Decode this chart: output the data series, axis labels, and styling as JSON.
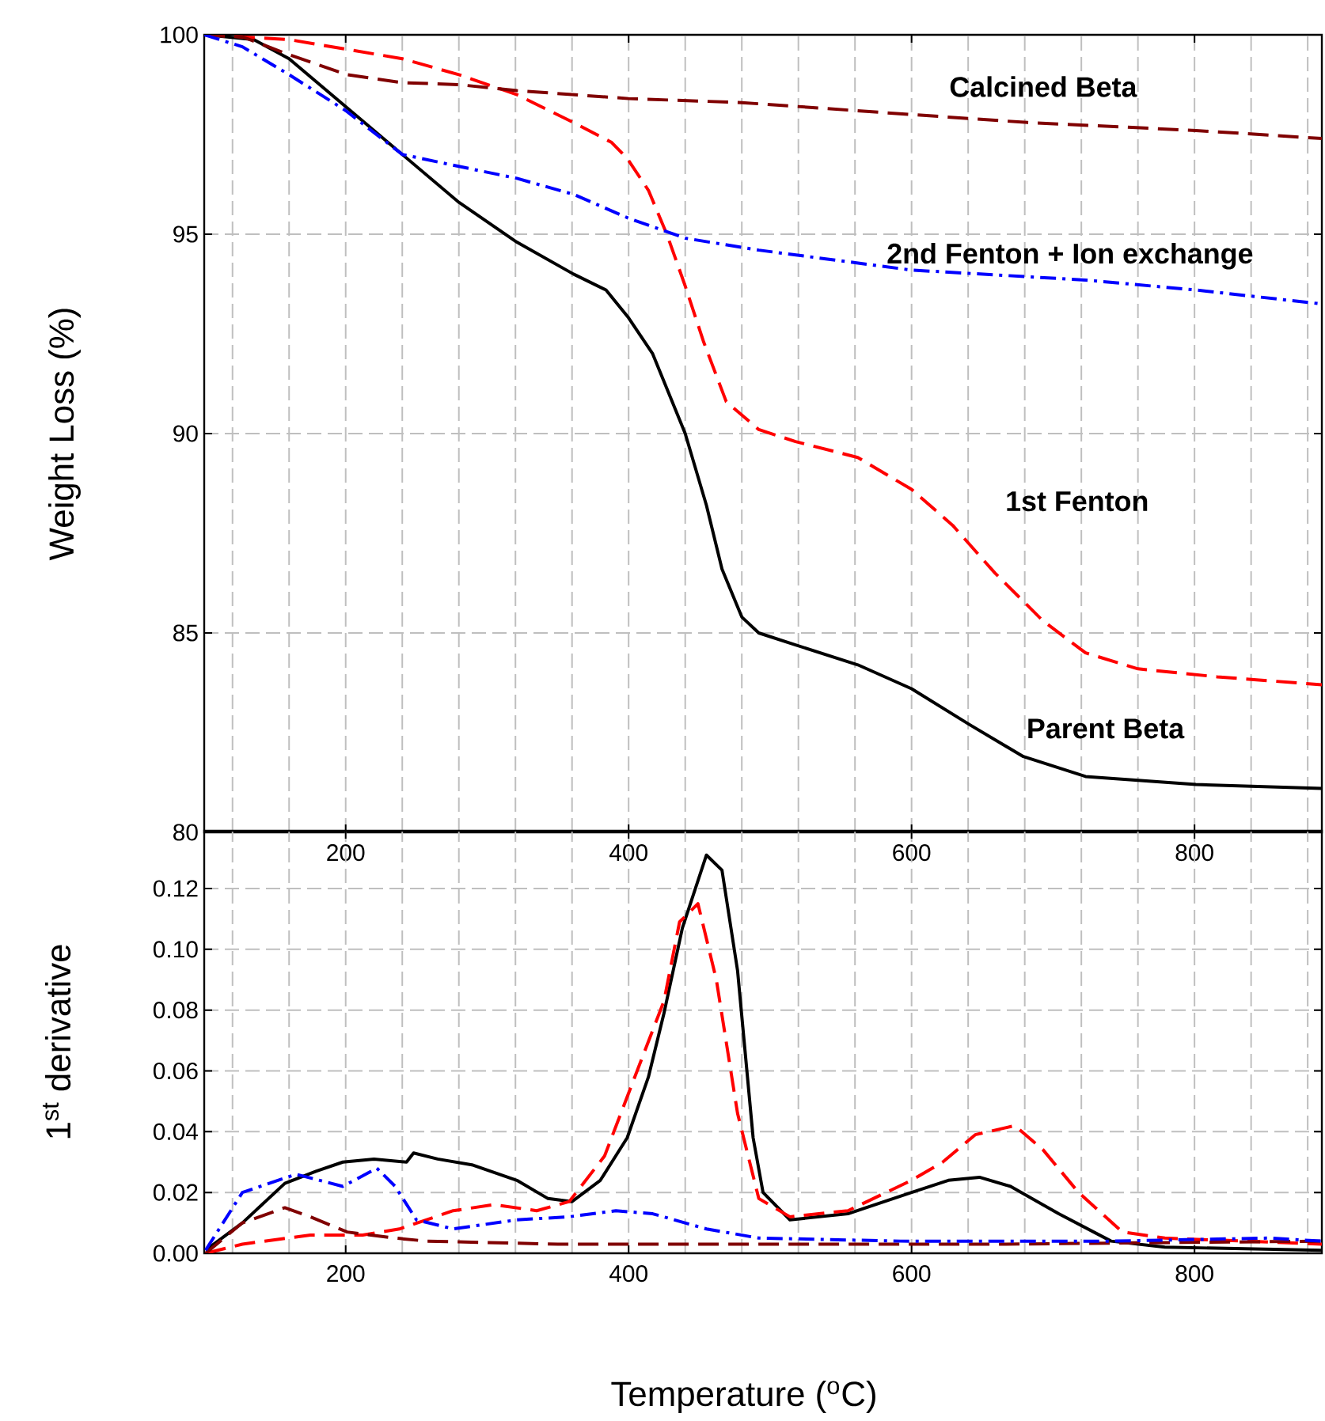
{
  "chart_data": [
    {
      "type": "line",
      "ylabel": "Weight Loss (%)",
      "xlim": [
        100,
        890
      ],
      "ylim": [
        80,
        100
      ],
      "xticks": [
        {
          "value": 120,
          "label": null
        },
        {
          "value": 160,
          "label": null
        },
        200,
        {
          "value": 240,
          "label": null
        },
        {
          "value": 280,
          "label": null
        },
        {
          "value": 320,
          "label": null
        },
        {
          "value": 360,
          "label": null
        },
        400,
        {
          "value": 440,
          "label": null
        },
        {
          "value": 480,
          "label": null
        },
        {
          "value": 520,
          "label": null
        },
        {
          "value": 560,
          "label": null
        },
        600,
        {
          "value": 640,
          "label": null
        },
        {
          "value": 680,
          "label": null
        },
        {
          "value": 720,
          "label": null
        },
        {
          "value": 760,
          "label": null
        },
        800,
        {
          "value": 840,
          "label": null
        },
        {
          "value": 880,
          "label": null
        }
      ],
      "yticks": [
        80,
        85,
        90,
        95,
        100
      ],
      "grid": true,
      "series": [
        {
          "name": "Parent Beta",
          "color": "#000000",
          "line_style": "solid",
          "x": [
            101,
            135,
            160,
            200,
            240,
            280,
            321,
            361,
            384,
            400,
            417,
            440,
            455,
            466,
            480,
            492,
            518,
            562,
            600,
            641,
            679,
            723,
            801,
            890
          ],
          "values": [
            100,
            99.88,
            99.4,
            98.2,
            97.0,
            95.8,
            94.8,
            94.0,
            93.6,
            92.9,
            92.0,
            90.0,
            88.2,
            86.6,
            85.4,
            85.0,
            84.7,
            84.2,
            83.6,
            82.7,
            81.9,
            81.4,
            81.2,
            81.1
          ]
        },
        {
          "name": "1st Fenton",
          "color": "#ff0000",
          "line_style": "dashed",
          "x": [
            100,
            160,
            240,
            280,
            321,
            361,
            388,
            399,
            414,
            427,
            440,
            453,
            469,
            492,
            518,
            562,
            600,
            629,
            659,
            693,
            723,
            760,
            816,
            890
          ],
          "values": [
            100,
            99.88,
            99.4,
            99.0,
            98.5,
            97.8,
            97.3,
            96.9,
            96.1,
            95.0,
            93.7,
            92.3,
            90.8,
            90.1,
            89.8,
            89.4,
            88.6,
            87.7,
            86.5,
            85.3,
            84.5,
            84.1,
            83.9,
            83.7
          ]
        },
        {
          "name": "Calcined Beta",
          "color": "#800000",
          "line_style": "dashed",
          "x": [
            100,
            127,
            160,
            201,
            240,
            280,
            321,
            400,
            480,
            600,
            682,
            801,
            890
          ],
          "values": [
            100,
            99.95,
            99.5,
            99.0,
            98.8,
            98.75,
            98.6,
            98.4,
            98.3,
            98.0,
            97.8,
            97.6,
            97.4
          ]
        },
        {
          "name": "2nd Fenton + Ion exchange",
          "color": "#0000ff",
          "line_style": "dashdot",
          "x": [
            100,
            127,
            160,
            200,
            240,
            280,
            321,
            361,
            400,
            440,
            492,
            600,
            723,
            801,
            890
          ],
          "values": [
            100,
            99.7,
            99.0,
            98.1,
            97.0,
            96.7,
            96.4,
            96.0,
            95.4,
            94.9,
            94.6,
            94.1,
            93.85,
            93.6,
            93.25
          ]
        }
      ]
    },
    {
      "type": "line",
      "xlabel": "Temperature ($^{o}$C)",
      "ylabel": "1$^{st}$ derivative",
      "xlim": [
        100,
        890
      ],
      "ylim": [
        0,
        0.139
      ],
      "xticks": [
        {
          "value": 120,
          "label": null
        },
        {
          "value": 160,
          "label": null
        },
        200,
        {
          "value": 240,
          "label": null
        },
        {
          "value": 280,
          "label": null
        },
        {
          "value": 320,
          "label": null
        },
        {
          "value": 360,
          "label": null
        },
        400,
        {
          "value": 440,
          "label": null
        },
        {
          "value": 480,
          "label": null
        },
        {
          "value": 520,
          "label": null
        },
        {
          "value": 560,
          "label": null
        },
        600,
        {
          "value": 640,
          "label": null
        },
        {
          "value": 680,
          "label": null
        },
        {
          "value": 720,
          "label": null
        },
        {
          "value": 760,
          "label": null
        },
        800,
        {
          "value": 840,
          "label": null
        },
        {
          "value": 880,
          "label": null
        }
      ],
      "yticks": [
        {
          "value": 0,
          "label": "0.00"
        },
        {
          "value": 0.02,
          "label": "0.02"
        },
        {
          "value": 0.04,
          "label": "0.04"
        },
        {
          "value": 0.06,
          "label": "0.06"
        },
        {
          "value": 0.08,
          "label": "0.08"
        },
        {
          "value": 0.1,
          "label": "0.10"
        },
        {
          "value": 0.12,
          "label": "0.12"
        }
      ],
      "grid": true,
      "series": [
        {
          "color": "#000000",
          "line_style": "solid",
          "x": [
            101,
            127,
            157,
            179,
            198,
            220,
            243,
            248,
            265,
            290,
            321,
            343,
            360,
            380,
            399,
            414,
            425,
            438,
            455,
            466,
            477,
            488,
            495,
            514,
            555,
            600,
            626,
            648,
            670,
            704,
            741,
            779,
            890
          ],
          "values": [
            0.001,
            0.01,
            0.023,
            0.027,
            0.03,
            0.031,
            0.03,
            0.033,
            0.031,
            0.029,
            0.024,
            0.018,
            0.017,
            0.024,
            0.038,
            0.058,
            0.079,
            0.107,
            0.131,
            0.126,
            0.093,
            0.038,
            0.02,
            0.011,
            0.013,
            0.02,
            0.024,
            0.025,
            0.022,
            0.013,
            0.004,
            0.002,
            0.001
          ]
        },
        {
          "color": "#ff0000",
          "line_style": "dashed",
          "x": [
            101,
            127,
            175,
            212,
            238,
            276,
            305,
            335,
            358,
            383,
            406,
            425,
            436,
            449,
            462,
            477,
            492,
            514,
            555,
            600,
            622,
            645,
            673,
            693,
            718,
            749,
            779,
            890
          ],
          "values": [
            0.0,
            0.003,
            0.006,
            0.006,
            0.008,
            0.014,
            0.016,
            0.014,
            0.017,
            0.032,
            0.06,
            0.083,
            0.109,
            0.115,
            0.09,
            0.046,
            0.018,
            0.012,
            0.014,
            0.024,
            0.03,
            0.039,
            0.042,
            0.034,
            0.02,
            0.007,
            0.005,
            0.003
          ]
        },
        {
          "color": "#800000",
          "line_style": "dashed",
          "x": [
            101,
            127,
            157,
            175,
            201,
            235,
            257,
            350,
            492,
            667,
            890
          ],
          "values": [
            0.0,
            0.01,
            0.015,
            0.012,
            0.007,
            0.005,
            0.004,
            0.003,
            0.003,
            0.003,
            0.004
          ]
        },
        {
          "color": "#0000ff",
          "line_style": "dashdot",
          "x": [
            101,
            127,
            165,
            198,
            222,
            235,
            250,
            276,
            321,
            358,
            391,
            417,
            455,
            492,
            592,
            741,
            853,
            890
          ],
          "values": [
            0.001,
            0.02,
            0.026,
            0.022,
            0.028,
            0.022,
            0.011,
            0.008,
            0.011,
            0.012,
            0.014,
            0.013,
            0.008,
            0.005,
            0.004,
            0.004,
            0.005,
            0.004
          ]
        }
      ]
    }
  ]
}
